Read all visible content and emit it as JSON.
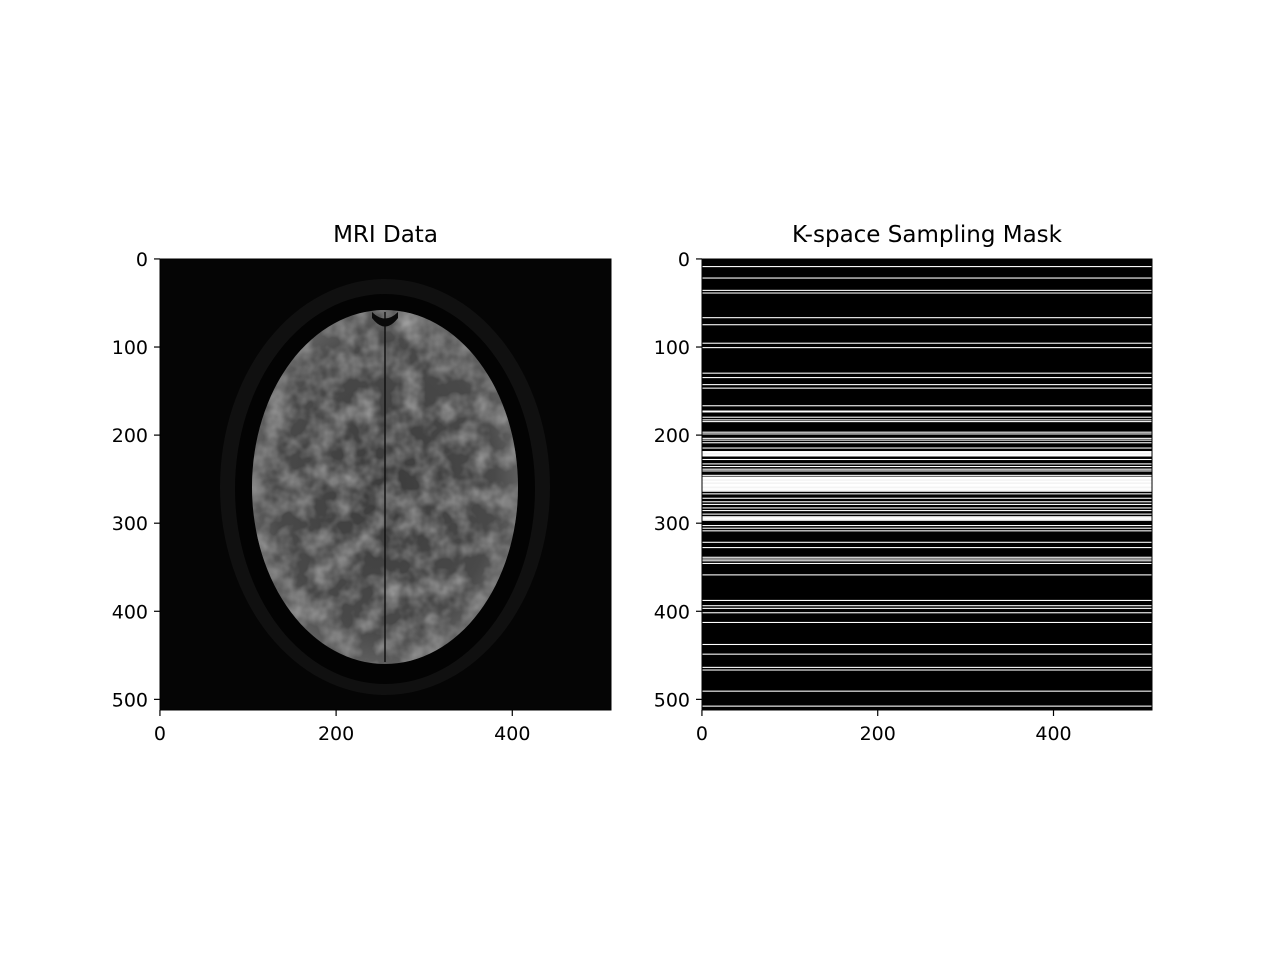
{
  "figure": {
    "background": "#ffffff"
  },
  "chart_data": [
    {
      "type": "heatmap",
      "title": "MRI Data",
      "image": "axial brain MRI slice, grayscale",
      "colormap": "gray",
      "xlim": [
        0,
        512
      ],
      "ylim": [
        512,
        0
      ],
      "xticks": [
        0,
        200,
        400
      ],
      "yticks": [
        0,
        100,
        200,
        300,
        400,
        500
      ],
      "xtick_labels": [
        "0",
        "200",
        "400"
      ],
      "ytick_labels": [
        "0",
        "100",
        "200",
        "300",
        "400",
        "500"
      ]
    },
    {
      "type": "heatmap",
      "title": "K-space Sampling Mask",
      "colormap": "gray",
      "xlim": [
        0,
        512
      ],
      "ylim": [
        512,
        0
      ],
      "xticks": [
        0,
        200,
        400
      ],
      "yticks": [
        0,
        100,
        200,
        300,
        400,
        500
      ],
      "xtick_labels": [
        "0",
        "200",
        "400"
      ],
      "ytick_labels": [
        "0",
        "100",
        "200",
        "300",
        "400",
        "500"
      ],
      "sampled_rows": [
        8,
        21,
        35,
        38,
        66,
        74,
        95,
        100,
        129,
        134,
        142,
        146,
        166,
        172,
        173,
        179,
        182,
        184,
        196,
        198,
        203,
        205,
        208,
        214,
        218,
        219,
        220,
        221,
        222,
        223,
        227,
        232,
        235,
        238,
        240,
        245,
        247,
        248,
        249,
        250,
        251,
        252,
        253,
        254,
        255,
        256,
        257,
        258,
        259,
        260,
        261,
        262,
        263,
        266,
        271,
        275,
        278,
        282,
        285,
        289,
        292,
        293,
        294,
        295,
        296,
        302,
        305,
        308,
        321,
        327,
        338,
        340,
        342,
        345,
        358,
        387,
        393,
        396,
        401,
        412,
        437,
        448,
        463,
        466,
        490,
        507
      ],
      "sampled_value": 1,
      "unsampled_value": 0
    }
  ]
}
